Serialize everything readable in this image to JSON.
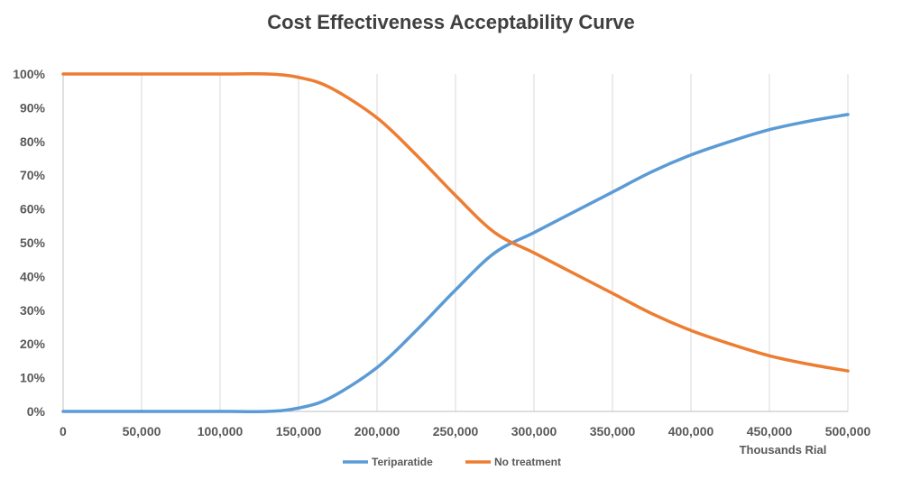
{
  "chart_data": {
    "type": "line",
    "title": "Cost Effectiveness Acceptability Curve",
    "xlabel": "Thousands Rial",
    "ylabel": "",
    "xlim": [
      0,
      500000
    ],
    "ylim": [
      0,
      100
    ],
    "x_ticks": [
      0,
      50000,
      100000,
      150000,
      200000,
      250000,
      300000,
      350000,
      400000,
      450000,
      500000
    ],
    "x_tick_labels": [
      "0",
      "50,000",
      "100,000",
      "150,000",
      "200,000",
      "250,000",
      "300,000",
      "350,000",
      "400,000",
      "450,000",
      "500,000"
    ],
    "y_ticks": [
      0,
      10,
      20,
      30,
      40,
      50,
      60,
      70,
      80,
      90,
      100
    ],
    "y_tick_labels": [
      "0%",
      "10%",
      "20%",
      "30%",
      "40%",
      "50%",
      "60%",
      "70%",
      "80%",
      "90%",
      "100%"
    ],
    "grid": "vertical",
    "legend_position": "bottom",
    "x": [
      0,
      50000,
      100000,
      130000,
      150000,
      170000,
      200000,
      225000,
      250000,
      275000,
      300000,
      325000,
      350000,
      375000,
      400000,
      425000,
      450000,
      475000,
      500000
    ],
    "series": [
      {
        "name": "Teriparatide",
        "color": "#5b9bd5",
        "values": [
          0,
          0,
          0,
          0,
          1,
          4,
          13,
          24,
          36,
          47,
          53,
          59,
          65,
          71,
          76,
          80,
          83.5,
          86,
          88
        ]
      },
      {
        "name": "No treatment",
        "color": "#ed7d31",
        "values": [
          100,
          100,
          100,
          100,
          99,
          96,
          87,
          76,
          64,
          53,
          47,
          41,
          35,
          29,
          24,
          20,
          16.5,
          14,
          12
        ]
      }
    ]
  }
}
